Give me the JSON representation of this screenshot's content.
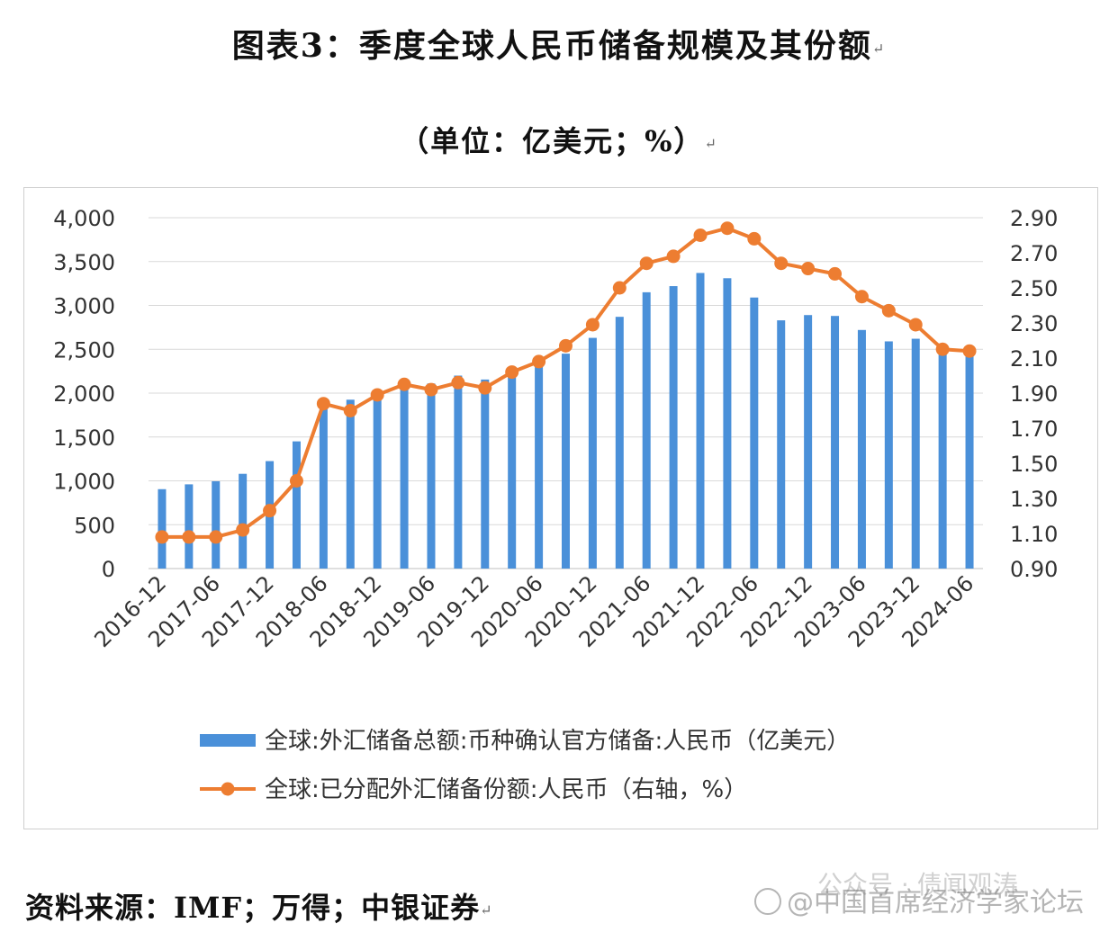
{
  "title": "图表3：季度全球人民币储备规模及其份额",
  "unit": "（单位：亿美元；%）",
  "source": "资料来源：IMF；万得；中银证券",
  "watermark": {
    "line1": "公众号 · 债闻观涛",
    "line2": "@中国首席经济学家论坛"
  },
  "chart_data": {
    "type": "bar+line",
    "categories": [
      "2016-12",
      "2017-03",
      "2017-06",
      "2017-09",
      "2017-12",
      "2018-03",
      "2018-06",
      "2018-09",
      "2018-12",
      "2019-03",
      "2019-06",
      "2019-09",
      "2019-12",
      "2020-03",
      "2020-06",
      "2020-09",
      "2020-12",
      "2021-03",
      "2021-06",
      "2021-09",
      "2021-12",
      "2022-03",
      "2022-06",
      "2022-09",
      "2022-12",
      "2023-03",
      "2023-06",
      "2023-09",
      "2023-12",
      "2024-03",
      "2024-06"
    ],
    "x_tick_labels": [
      "2016-12",
      "2017-06",
      "2017-12",
      "2018-06",
      "2018-12",
      "2019-06",
      "2019-12",
      "2020-06",
      "2020-12",
      "2021-06",
      "2021-12",
      "2022-06",
      "2022-12",
      "2023-06",
      "2023-12",
      "2024-06"
    ],
    "series": [
      {
        "name": "全球:外汇储备总额:币种确认官方储备:人民币（亿美元）",
        "type": "bar",
        "axis": "left",
        "color": "#4a90d9",
        "values": [
          905,
          960,
          995,
          1080,
          1225,
          1450,
          1935,
          1925,
          2030,
          2130,
          2110,
          2200,
          2155,
          2200,
          2360,
          2450,
          2630,
          2870,
          3150,
          3220,
          3370,
          3310,
          3090,
          2830,
          2890,
          2880,
          2720,
          2590,
          2620,
          2490,
          2460
        ]
      },
      {
        "name": "全球:已分配外汇储备份额:人民币（右轴，%）",
        "type": "line",
        "axis": "right",
        "color": "#ed7d31",
        "values": [
          1.08,
          1.08,
          1.08,
          1.12,
          1.23,
          1.4,
          1.84,
          1.8,
          1.89,
          1.95,
          1.92,
          1.96,
          1.93,
          2.02,
          2.08,
          2.17,
          2.29,
          2.5,
          2.64,
          2.68,
          2.8,
          2.84,
          2.78,
          2.64,
          2.61,
          2.58,
          2.45,
          2.37,
          2.29,
          2.15,
          2.14
        ]
      }
    ],
    "y_left": {
      "min": 0,
      "max": 4000,
      "ticks": [
        "0",
        "500",
        "1,000",
        "1,500",
        "2,000",
        "2,500",
        "3,000",
        "3,500",
        "4,000"
      ]
    },
    "y_right": {
      "min": 0.9,
      "max": 2.9,
      "ticks": [
        "0.90",
        "1.10",
        "1.30",
        "1.50",
        "1.70",
        "1.90",
        "2.10",
        "2.30",
        "2.50",
        "2.70",
        "2.90"
      ]
    },
    "grid": true,
    "legend_position": "bottom"
  }
}
